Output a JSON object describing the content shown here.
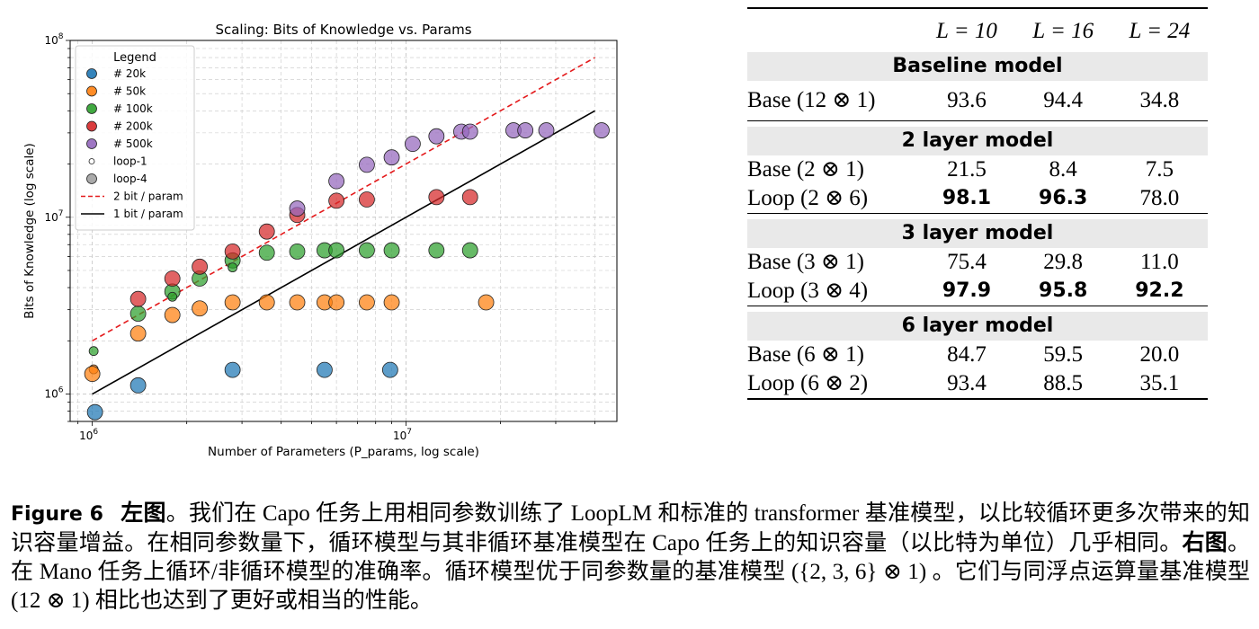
{
  "chart_data": {
    "type": "scatter",
    "title": "Scaling: Bits of Knowledge vs. Params",
    "xlabel": "Number of Parameters (P_params, log scale)",
    "ylabel": "Bits of Knowledge (log scale)",
    "xscale": "log",
    "yscale": "log",
    "xlim": [
      850000,
      47000000
    ],
    "ylim": [
      700000,
      100000000
    ],
    "x_ticks": [
      {
        "value": 1000000,
        "base": "10",
        "exp": "6"
      },
      {
        "value": 10000000,
        "base": "10",
        "exp": "7"
      }
    ],
    "y_ticks": [
      {
        "value": 1000000,
        "base": "10",
        "exp": "6"
      },
      {
        "value": 10000000,
        "base": "10",
        "exp": "7"
      },
      {
        "value": 100000000,
        "base": "10",
        "exp": "8"
      }
    ],
    "grid": true,
    "legend_title": "Legend",
    "legend_position": "top-left",
    "legend": [
      {
        "label": "# 20k",
        "kind": "marker",
        "color": "#1f77b4"
      },
      {
        "label": "# 50k",
        "kind": "marker",
        "color": "#ff7f0e"
      },
      {
        "label": "# 100k",
        "kind": "marker",
        "color": "#2ca02c"
      },
      {
        "label": "# 200k",
        "kind": "marker",
        "color": "#d62728"
      },
      {
        "label": "# 500k",
        "kind": "marker",
        "color": "#9467bd"
      },
      {
        "label": "loop-1",
        "kind": "small-marker",
        "color": "#ffffff"
      },
      {
        "label": "loop-4",
        "kind": "big-marker",
        "color": "#aaaaaa"
      },
      {
        "label": "2 bit / param",
        "kind": "dashed-line",
        "color": "#e41a1c"
      },
      {
        "label": "1 bit / param",
        "kind": "solid-line",
        "color": "#000000"
      }
    ],
    "lines": [
      {
        "label": "2 bit / param",
        "x": [
          1000000,
          40000000
        ],
        "y": [
          2000000,
          80000000
        ],
        "color": "#e41a1c",
        "dash": true
      },
      {
        "label": "1 bit / param",
        "x": [
          1000000,
          40000000
        ],
        "y": [
          1000000,
          40000000
        ],
        "color": "#000000",
        "dash": false
      }
    ],
    "series": [
      {
        "name": "# 20k",
        "color": "#1f77b4",
        "points": [
          {
            "x": 1020000,
            "y": 790000,
            "loop": 4
          },
          {
            "x": 1400000,
            "y": 1120000,
            "loop": 4
          },
          {
            "x": 2800000,
            "y": 1370000,
            "loop": 4
          },
          {
            "x": 5500000,
            "y": 1370000,
            "loop": 4
          },
          {
            "x": 8900000,
            "y": 1370000,
            "loop": 4
          }
        ]
      },
      {
        "name": "# 50k",
        "color": "#ff7f0e",
        "points": [
          {
            "x": 1010000,
            "y": 1380000,
            "loop": 1
          },
          {
            "x": 1000000,
            "y": 1300000,
            "loop": 4
          },
          {
            "x": 1400000,
            "y": 2200000,
            "loop": 4
          },
          {
            "x": 1800000,
            "y": 2800000,
            "loop": 4
          },
          {
            "x": 2200000,
            "y": 3050000,
            "loop": 4
          },
          {
            "x": 2800000,
            "y": 3300000,
            "loop": 4
          },
          {
            "x": 3600000,
            "y": 3300000,
            "loop": 4
          },
          {
            "x": 4500000,
            "y": 3300000,
            "loop": 4
          },
          {
            "x": 5500000,
            "y": 3300000,
            "loop": 4
          },
          {
            "x": 6000000,
            "y": 3300000,
            "loop": 4
          },
          {
            "x": 7500000,
            "y": 3300000,
            "loop": 4
          },
          {
            "x": 9000000,
            "y": 3300000,
            "loop": 4
          },
          {
            "x": 18000000,
            "y": 3300000,
            "loop": 4
          }
        ]
      },
      {
        "name": "# 100k",
        "color": "#2ca02c",
        "points": [
          {
            "x": 1010000,
            "y": 1750000,
            "loop": 1
          },
          {
            "x": 1400000,
            "y": 2850000,
            "loop": 4
          },
          {
            "x": 1800000,
            "y": 3800000,
            "loop": 4
          },
          {
            "x": 1800000,
            "y": 3550000,
            "loop": 1
          },
          {
            "x": 2200000,
            "y": 4500000,
            "loop": 4
          },
          {
            "x": 2800000,
            "y": 5700000,
            "loop": 4
          },
          {
            "x": 2800000,
            "y": 5200000,
            "loop": 1
          },
          {
            "x": 3600000,
            "y": 6300000,
            "loop": 4
          },
          {
            "x": 4500000,
            "y": 6400000,
            "loop": 4
          },
          {
            "x": 5500000,
            "y": 6500000,
            "loop": 4
          },
          {
            "x": 6000000,
            "y": 6500000,
            "loop": 4
          },
          {
            "x": 7500000,
            "y": 6500000,
            "loop": 4
          },
          {
            "x": 9000000,
            "y": 6500000,
            "loop": 4
          },
          {
            "x": 12500000,
            "y": 6500000,
            "loop": 4
          },
          {
            "x": 16000000,
            "y": 6500000,
            "loop": 4
          }
        ]
      },
      {
        "name": "# 200k",
        "color": "#d62728",
        "points": [
          {
            "x": 1400000,
            "y": 3450000,
            "loop": 4
          },
          {
            "x": 1800000,
            "y": 4500000,
            "loop": 4
          },
          {
            "x": 2200000,
            "y": 5250000,
            "loop": 4
          },
          {
            "x": 2800000,
            "y": 6400000,
            "loop": 4
          },
          {
            "x": 3600000,
            "y": 8300000,
            "loop": 4
          },
          {
            "x": 4500000,
            "y": 10300000,
            "loop": 4
          },
          {
            "x": 6000000,
            "y": 12400000,
            "loop": 4
          },
          {
            "x": 7500000,
            "y": 12600000,
            "loop": 4
          },
          {
            "x": 12500000,
            "y": 13000000,
            "loop": 4
          },
          {
            "x": 16000000,
            "y": 13000000,
            "loop": 4
          }
        ]
      },
      {
        "name": "# 500k",
        "color": "#9467bd",
        "points": [
          {
            "x": 4500000,
            "y": 11200000,
            "loop": 4
          },
          {
            "x": 6000000,
            "y": 16000000,
            "loop": 4
          },
          {
            "x": 7500000,
            "y": 19800000,
            "loop": 4
          },
          {
            "x": 9000000,
            "y": 21800000,
            "loop": 4
          },
          {
            "x": 10500000,
            "y": 26000000,
            "loop": 4
          },
          {
            "x": 12500000,
            "y": 28700000,
            "loop": 4
          },
          {
            "x": 15000000,
            "y": 30500000,
            "loop": 4
          },
          {
            "x": 16000000,
            "y": 30500000,
            "loop": 4
          },
          {
            "x": 22000000,
            "y": 31000000,
            "loop": 4
          },
          {
            "x": 24000000,
            "y": 31000000,
            "loop": 4
          },
          {
            "x": 28000000,
            "y": 31000000,
            "loop": 4
          },
          {
            "x": 42000000,
            "y": 31000000,
            "loop": 4
          }
        ]
      }
    ]
  },
  "table": {
    "headers": [
      "",
      "L = 10",
      "L = 16",
      "L = 24"
    ],
    "sections": [
      {
        "title": "Baseline model",
        "rows": [
          {
            "label": "Base (12 ⊗ 1)",
            "values": [
              "93.6",
              "94.4",
              "34.8"
            ],
            "bold": [
              false,
              false,
              false
            ]
          }
        ]
      },
      {
        "title": "2 layer model",
        "rows": [
          {
            "label": "Base (2 ⊗ 1)",
            "values": [
              "21.5",
              "8.4",
              "7.5"
            ],
            "bold": [
              false,
              false,
              false
            ]
          },
          {
            "label": "Loop (2 ⊗ 6)",
            "values": [
              "98.1",
              "96.3",
              "78.0"
            ],
            "bold": [
              true,
              true,
              false
            ]
          }
        ]
      },
      {
        "title": "3 layer model",
        "rows": [
          {
            "label": "Base (3 ⊗ 1)",
            "values": [
              "75.4",
              "29.8",
              "11.0"
            ],
            "bold": [
              false,
              false,
              false
            ]
          },
          {
            "label": "Loop (3 ⊗ 4)",
            "values": [
              "97.9",
              "95.8",
              "92.2"
            ],
            "bold": [
              true,
              true,
              true
            ]
          }
        ]
      },
      {
        "title": "6 layer model",
        "rows": [
          {
            "label": "Base (6 ⊗ 1)",
            "values": [
              "84.7",
              "59.5",
              "20.0"
            ],
            "bold": [
              false,
              false,
              false
            ]
          },
          {
            "label": "Loop (6 ⊗ 2)",
            "values": [
              "93.4",
              "88.5",
              "35.1"
            ],
            "bold": [
              false,
              false,
              false
            ]
          }
        ]
      }
    ]
  },
  "caption": {
    "figure_label": "Figure 6",
    "left_label": "左图",
    "left_text": "。我们在 Capo 任务上用相同参数训练了 LoopLM 和标准的 transformer 基准模型，以比较循环更多次带来的知识容量增益。在相同参数量下，循环模型与其非循环基准模型在 Capo 任务上的知识容量（以比特为单位）几乎相同。",
    "right_label": "右图",
    "right_text": "。在 Mano 任务上循环/非循环模型的准确率。循环模型优于同参数量的基准模型 ({2, 3, 6} ⊗ 1) 。它们与同浮点运算量基准模型 (12 ⊗ 1) 相比也达到了更好或相当的性能。"
  }
}
